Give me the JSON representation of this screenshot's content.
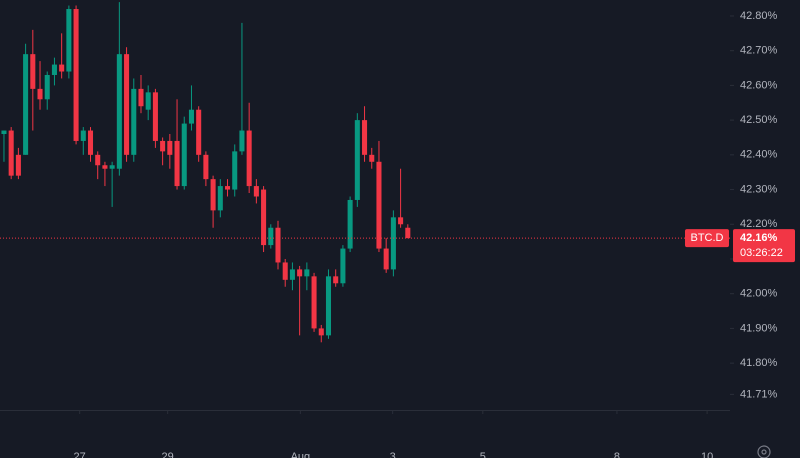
{
  "chart_data": {
    "type": "candlestick",
    "colors": {
      "up": "#089981",
      "down": "#f23645"
    },
    "open": [
      42.46,
      42.47,
      42.4,
      42.4,
      42.69,
      42.59,
      42.56,
      42.63,
      42.66,
      42.64,
      42.82,
      42.44,
      42.47,
      42.4,
      42.37,
      42.36,
      42.36,
      42.69,
      42.4,
      42.59,
      42.53,
      42.58,
      42.44,
      42.44,
      42.44,
      42.31,
      42.49,
      42.53,
      42.4,
      42.33,
      42.24,
      42.31,
      42.3,
      42.41,
      42.47,
      42.31,
      42.3,
      42.14,
      42.19,
      42.09,
      42.04,
      42.07,
      42.05,
      42.05,
      41.9,
      41.88,
      42.05,
      42.03,
      42.13,
      42.27,
      42.5,
      42.4,
      42.38,
      42.13,
      42.07,
      42.22,
      42.19
    ],
    "high": [
      42.47,
      42.48,
      42.42,
      42.72,
      42.76,
      42.67,
      42.64,
      42.68,
      42.75,
      42.83,
      42.83,
      42.48,
      42.48,
      42.41,
      42.38,
      42.38,
      42.84,
      42.71,
      42.62,
      42.63,
      42.6,
      42.59,
      42.45,
      42.46,
      42.56,
      42.51,
      42.6,
      42.54,
      42.41,
      42.34,
      42.33,
      42.33,
      42.43,
      42.78,
      42.55,
      42.33,
      42.31,
      42.2,
      42.21,
      42.1,
      42.09,
      42.08,
      42.09,
      42.06,
      41.91,
      42.07,
      42.07,
      42.14,
      42.28,
      42.52,
      42.54,
      42.42,
      42.44,
      42.16,
      42.24,
      42.36,
      42.2
    ],
    "low": [
      42.38,
      42.33,
      42.33,
      42.4,
      42.47,
      42.53,
      42.53,
      42.6,
      42.62,
      42.62,
      42.43,
      42.4,
      42.38,
      42.33,
      42.31,
      42.25,
      42.34,
      42.38,
      42.38,
      42.52,
      42.5,
      42.42,
      42.37,
      42.36,
      42.3,
      42.3,
      42.47,
      42.38,
      42.31,
      42.19,
      42.22,
      42.28,
      42.28,
      42.4,
      42.29,
      42.26,
      42.12,
      42.13,
      42.07,
      42.02,
      42.01,
      41.88,
      42.01,
      41.89,
      41.86,
      41.87,
      42.02,
      42.02,
      42.12,
      42.25,
      42.38,
      42.36,
      42.12,
      42.06,
      42.05,
      42.19,
      42.16
    ],
    "close": [
      42.47,
      42.34,
      42.34,
      42.69,
      42.59,
      42.56,
      42.63,
      42.66,
      42.64,
      42.82,
      42.44,
      42.47,
      42.4,
      42.37,
      42.36,
      42.37,
      42.69,
      42.4,
      42.59,
      42.54,
      42.58,
      42.44,
      42.41,
      42.4,
      42.31,
      42.49,
      42.53,
      42.4,
      42.33,
      42.24,
      42.31,
      42.3,
      42.41,
      42.47,
      42.31,
      42.28,
      42.14,
      42.19,
      42.09,
      42.04,
      42.07,
      42.05,
      42.07,
      41.9,
      41.88,
      42.05,
      42.03,
      42.13,
      42.27,
      42.5,
      42.4,
      42.38,
      42.13,
      42.07,
      42.22,
      42.2,
      42.16
    ],
    "ylim": [
      41.665,
      42.846
    ],
    "yticks": [
      {
        "value": 42.8,
        "label": "42.80%"
      },
      {
        "value": 42.7,
        "label": "42.70%"
      },
      {
        "value": 42.6,
        "label": "42.60%"
      },
      {
        "value": 42.5,
        "label": "42.50%"
      },
      {
        "value": 42.4,
        "label": "42.40%"
      },
      {
        "value": 42.3,
        "label": "42.30%"
      },
      {
        "value": 42.2,
        "label": "42.20%"
      },
      {
        "value": 42.1,
        "label": "42.10%"
      },
      {
        "value": 42.0,
        "label": "42.00%"
      },
      {
        "value": 41.9,
        "label": "41.90%"
      },
      {
        "value": 41.8,
        "label": "41.80%"
      },
      {
        "value": 41.71,
        "label": "41.71%"
      }
    ],
    "xlim": [
      -0.55,
      100.4
    ],
    "xticks": [
      {
        "value": 10.5,
        "label": "27"
      },
      {
        "value": 22.7,
        "label": "29"
      },
      {
        "value": 41.1,
        "label": "Aug"
      },
      {
        "value": 53.9,
        "label": "3"
      },
      {
        "value": 66.4,
        "label": "5"
      },
      {
        "value": 85.0,
        "label": "8"
      },
      {
        "value": 97.5,
        "label": "10"
      }
    ],
    "symbol": "BTC.D",
    "last_price": {
      "value": 42.16,
      "label": "42.16%"
    },
    "countdown": "03:26:22"
  }
}
